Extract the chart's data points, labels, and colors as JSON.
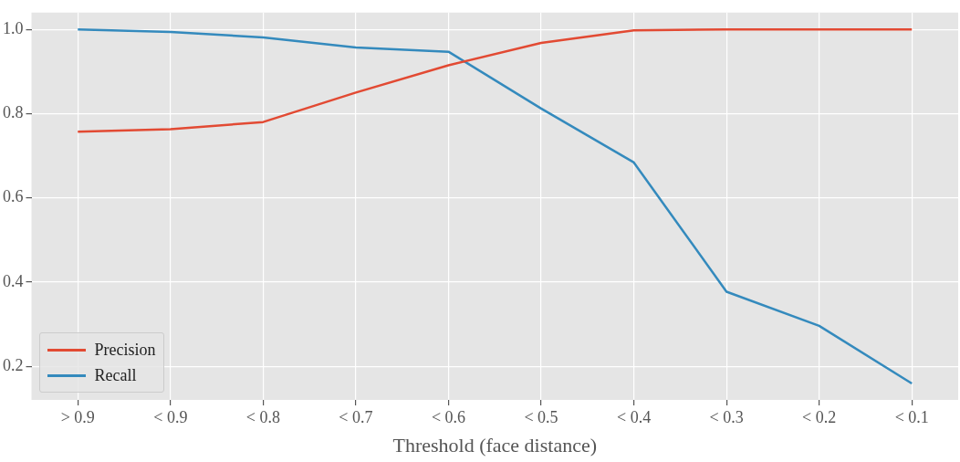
{
  "chart_data": {
    "type": "line",
    "xlabel": "Threshold (face distance)",
    "categories": [
      "> 0.9",
      "< 0.9",
      "< 0.8",
      "< 0.7",
      "< 0.6",
      "< 0.5",
      "< 0.4",
      "< 0.3",
      "< 0.2",
      "< 0.1"
    ],
    "series": [
      {
        "name": "Precision",
        "color": "#e24a33",
        "values": [
          0.757,
          0.763,
          0.78,
          0.85,
          0.915,
          0.968,
          0.998,
          1.0,
          1.0,
          1.0
        ]
      },
      {
        "name": "Recall",
        "color": "#348abd",
        "values": [
          1.0,
          0.994,
          0.981,
          0.957,
          0.947,
          0.812,
          0.684,
          0.377,
          0.296,
          0.159
        ]
      }
    ],
    "ylim": [
      0.12,
      1.04
    ],
    "yticks": [
      {
        "value": 0.2,
        "label": "0.2"
      },
      {
        "value": 0.4,
        "label": "0.4"
      },
      {
        "value": 0.6,
        "label": "0.6"
      },
      {
        "value": 0.8,
        "label": "0.8"
      },
      {
        "value": 1.0,
        "label": "1.0"
      }
    ],
    "grid": true,
    "legend": "bottom left",
    "marker": "none",
    "line_style": "solid"
  }
}
